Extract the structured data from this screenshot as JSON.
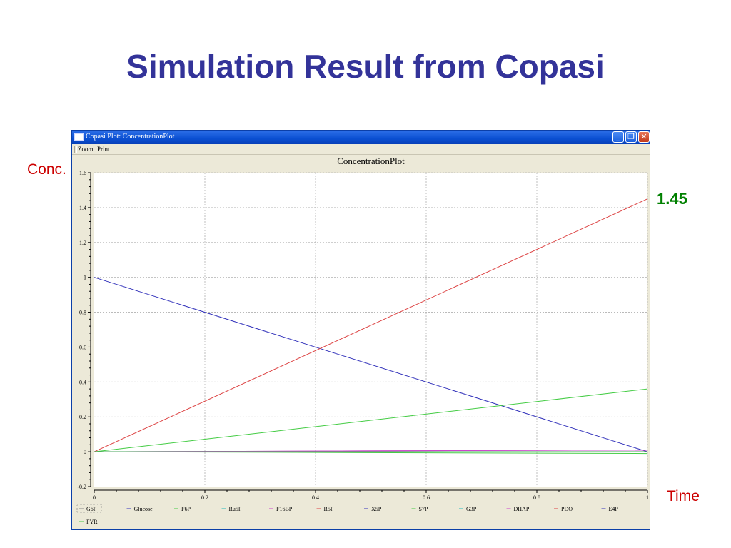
{
  "slide": {
    "title": "Simulation Result from Copasi",
    "y_annotation": "Conc.",
    "x_annotation": "Time",
    "final_value_annotation": "1.45"
  },
  "window": {
    "title": "Copasi Plot: ConcentrationPlot",
    "buttons": {
      "minimize": "_",
      "restore": "❐",
      "close": "✕"
    },
    "menu": [
      "Zoom",
      "Print"
    ]
  },
  "colors": {
    "title": "#333399",
    "annotation": "#cc0000",
    "final_value": "#008000",
    "window_titlebar": "#0a4fd1",
    "window_bg": "#ece9d8"
  },
  "chart_data": {
    "type": "line",
    "title": "ConcentrationPlot",
    "xlabel": "",
    "ylabel": "",
    "xlim": [
      0,
      1
    ],
    "ylim": [
      -0.2,
      1.6
    ],
    "xticks": [
      0,
      0.2,
      0.4,
      0.6,
      0.8,
      1
    ],
    "xtick_labels": [
      "0",
      "0.2",
      "0.4",
      "0.6",
      "0.8",
      "1"
    ],
    "yticks": [
      -0.2,
      0,
      0.2,
      0.4,
      0.6,
      0.8,
      1,
      1.2,
      1.4,
      1.6
    ],
    "ytick_labels": [
      "-0.2",
      "0",
      "0.2",
      "0.4",
      "0.6",
      "0.8",
      "1",
      "1.2",
      "1.4",
      "1.6"
    ],
    "grid": true,
    "legend_position": "bottom",
    "series": [
      {
        "name": "G6P",
        "color": "#888888",
        "x": [
          0,
          1
        ],
        "y": [
          0,
          0
        ]
      },
      {
        "name": "Glucose",
        "color": "#3333bb",
        "x": [
          0,
          1
        ],
        "y": [
          1,
          0
        ]
      },
      {
        "name": "F6P",
        "color": "#44cc44",
        "x": [
          0,
          1
        ],
        "y": [
          0,
          -0.01
        ]
      },
      {
        "name": "Ru5P",
        "color": "#22bbbb",
        "x": [
          0,
          1
        ],
        "y": [
          0,
          0
        ]
      },
      {
        "name": "F16BP",
        "color": "#cc44cc",
        "x": [
          0,
          1
        ],
        "y": [
          0,
          0.01
        ]
      },
      {
        "name": "R5P",
        "color": "#dd4444",
        "x": [
          0,
          1
        ],
        "y": [
          0,
          1.45
        ]
      },
      {
        "name": "X5P",
        "color": "#3333bb",
        "x": [
          0,
          1
        ],
        "y": [
          0,
          0
        ]
      },
      {
        "name": "S7P",
        "color": "#44cc44",
        "x": [
          0,
          1
        ],
        "y": [
          0,
          0.36
        ]
      },
      {
        "name": "G3P",
        "color": "#22bbbb",
        "x": [
          0,
          1
        ],
        "y": [
          0,
          0
        ]
      },
      {
        "name": "DHAP",
        "color": "#cc44cc",
        "x": [
          0,
          1
        ],
        "y": [
          0,
          0.01
        ]
      },
      {
        "name": "PDO",
        "color": "#dd4444",
        "x": [
          0,
          1
        ],
        "y": [
          0,
          0
        ]
      },
      {
        "name": "E4P",
        "color": "#3333bb",
        "x": [
          0,
          1
        ],
        "y": [
          0,
          0
        ]
      },
      {
        "name": "PYR",
        "color": "#44cc44",
        "x": [
          0,
          1
        ],
        "y": [
          0,
          0
        ]
      }
    ]
  }
}
